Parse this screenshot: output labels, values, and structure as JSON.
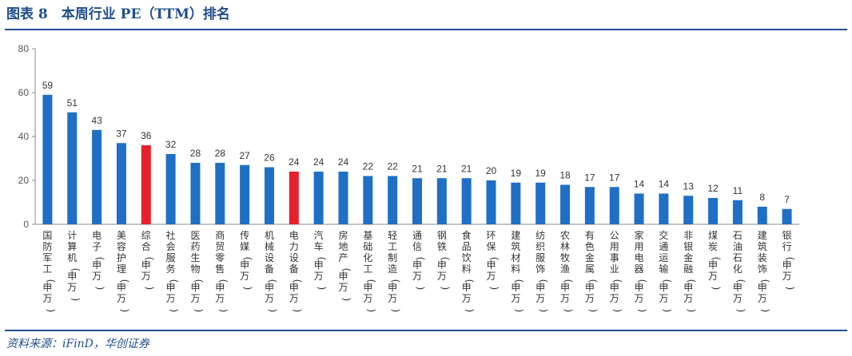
{
  "header": {
    "title": "图表 8　本周行业 PE（TTM）排名"
  },
  "footer": {
    "source": "资料来源：iFinD，华创证券"
  },
  "colors": {
    "bar": "#1f6fc5",
    "highlight": "#e8202a",
    "accent": "#1f4e8c"
  },
  "chart_data": {
    "type": "bar",
    "title": "",
    "xlabel": "",
    "ylabel": "",
    "ylim": [
      0,
      80
    ],
    "yticks": [
      0,
      20,
      40,
      60,
      80
    ],
    "grid": false,
    "legend": "none",
    "highlight_category": "综合(申万)",
    "categories": [
      "国防军工(申万)",
      "计算机(申万)",
      "电子(申万)",
      "美容护理(申万)",
      "综合(申万)",
      "社会服务(申万)",
      "医药生物(申万)",
      "商贸零售(申万)",
      "传媒(申万)",
      "机械设备(申万)",
      "电力设备(申万)",
      "汽车(申万)",
      "房地产(申万)",
      "基础化工(申万)",
      "轻工制造(申万)",
      "通信(申万)",
      "钢铁(申万)",
      "食品饮料(申万)",
      "环保(申万)",
      "建筑材料(申万)",
      "纺织服饰(申万)",
      "农林牧渔(申万)",
      "有色金属(申万)",
      "公用事业(申万)",
      "家用电器(申万)",
      "交通运输(申万)",
      "非银金融(申万)",
      "煤炭(申万)",
      "石油石化(申万)",
      "建筑装饰(申万)",
      "银行(申万)"
    ],
    "values": [
      59,
      51,
      43,
      37,
      36,
      32,
      28,
      28,
      27,
      26,
      24,
      24,
      24,
      22,
      22,
      21,
      21,
      21,
      20,
      19,
      19,
      18,
      17,
      17,
      14,
      14,
      13,
      12,
      11,
      8,
      7
    ],
    "red_categories": [
      "综合(申万)",
      "电力设备(申万)"
    ]
  }
}
